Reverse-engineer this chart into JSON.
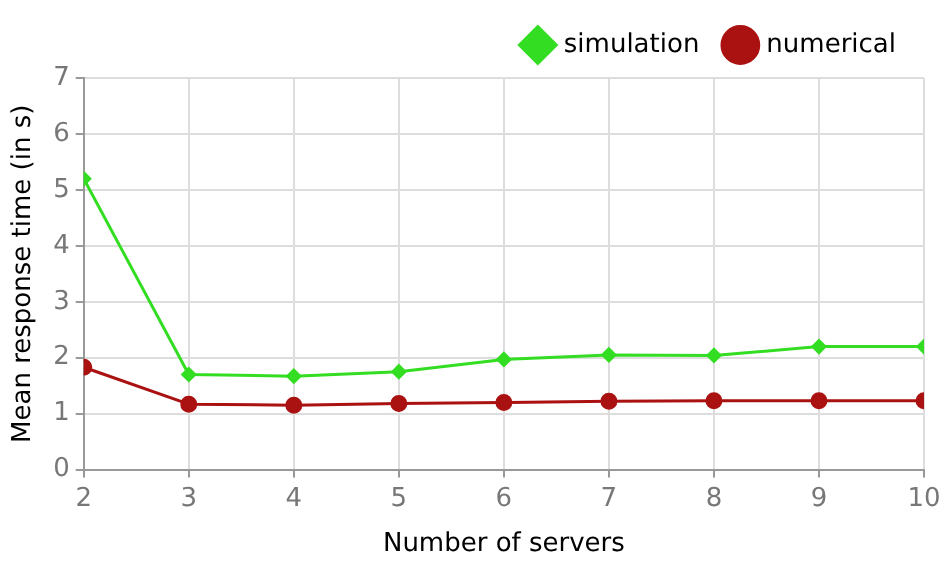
{
  "chart_data": {
    "type": "line",
    "xlabel": "Number of servers",
    "ylabel": "Mean response time (in s)",
    "x": [
      2,
      3,
      4,
      5,
      6,
      7,
      8,
      9,
      10
    ],
    "series": [
      {
        "name": "simulation",
        "color": "#33dd22",
        "marker": "diamond",
        "values": [
          5.2,
          1.7,
          1.67,
          1.75,
          1.97,
          2.05,
          2.04,
          2.2,
          2.2
        ]
      },
      {
        "name": "numerical",
        "color": "#aa1111",
        "marker": "circle",
        "values": [
          1.83,
          1.17,
          1.15,
          1.18,
          1.2,
          1.22,
          1.23,
          1.23,
          1.23
        ]
      }
    ],
    "xlim": [
      2,
      10
    ],
    "xticks": [
      2,
      3,
      4,
      5,
      6,
      7,
      8,
      9,
      10
    ],
    "ylim": [
      0,
      7
    ],
    "yticks": [
      0,
      1,
      2,
      3,
      4,
      5,
      6,
      7
    ],
    "grid": true,
    "legend": "top right",
    "line_style": "solid"
  }
}
